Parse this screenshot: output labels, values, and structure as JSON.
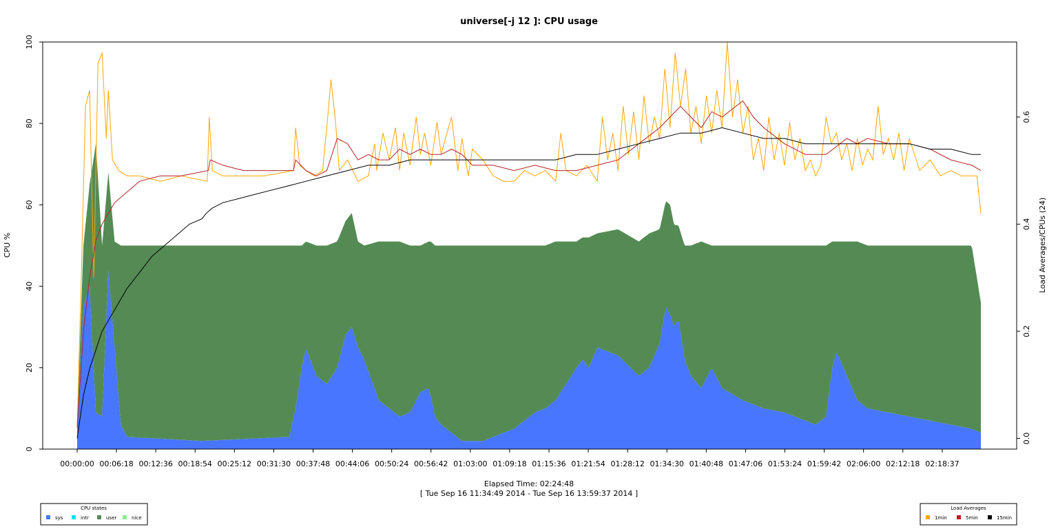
{
  "chart_data": {
    "type": "area",
    "title": "universe[-j 12  ]: CPU usage",
    "xlabel": "Elapsed Time: 02:24:48",
    "xlabel2": "[ Tue Sep 16 11:34:49 2014 - Tue Sep 16 13:59:37 2014 ]",
    "ylabel": "CPU %",
    "y2label": "Load Averages/CPUs (24)",
    "ylim": [
      0,
      100
    ],
    "y2lim": [
      -0.02,
      0.74
    ],
    "xlim_seconds": [
      0,
      8688
    ],
    "y_ticks": [
      "0",
      "20",
      "40",
      "60",
      "80",
      "100"
    ],
    "y2_ticks": [
      "0.0",
      "0.2",
      "0.4",
      "0.6"
    ],
    "x_ticks": [
      "00:00:00",
      "00:06:18",
      "00:12:36",
      "00:18:54",
      "00:25:12",
      "00:31:30",
      "00:37:48",
      "00:44:06",
      "00:50:24",
      "00:56:42",
      "01:03:00",
      "01:09:18",
      "01:15:36",
      "01:21:54",
      "01:28:12",
      "01:34:30",
      "01:40:48",
      "01:47:06",
      "01:53:24",
      "01:59:42",
      "02:06:00",
      "02:12:18",
      "02:18:37"
    ],
    "x_tick_seconds": [
      0,
      378,
      756,
      1134,
      1512,
      1890,
      2268,
      2646,
      3024,
      3402,
      3780,
      4158,
      4536,
      4914,
      5292,
      5670,
      6048,
      6426,
      6804,
      7182,
      7560,
      7938,
      8317
    ],
    "stacked_series": [
      {
        "name": "sys",
        "color": "#4876ff",
        "x": [
          0,
          60,
          120,
          180,
          240,
          300,
          360,
          420,
          480,
          1200,
          2040,
          2100,
          2160,
          2200,
          2300,
          2400,
          2500,
          2580,
          2640,
          2700,
          2760,
          2900,
          3000,
          3100,
          3200,
          3300,
          3380,
          3400,
          3440,
          3500,
          3600,
          3700,
          3800,
          3900,
          4000,
          4200,
          4300,
          4400,
          4500,
          4600,
          4800,
          4860,
          4920,
          5000,
          5200,
          5400,
          5500,
          5600,
          5660,
          5700,
          5740,
          5780,
          5840,
          5900,
          6000,
          6100,
          6200,
          6400,
          6600,
          6800,
          7000,
          7100,
          7200,
          7260,
          7300,
          7400,
          7500,
          7600,
          7800,
          8000,
          8200,
          8400,
          8600,
          8688
        ],
        "values": [
          3,
          35,
          40,
          9,
          8,
          44,
          25,
          6,
          3,
          2,
          3,
          10,
          20,
          25,
          18,
          16,
          20,
          28,
          30,
          25,
          22,
          12,
          10,
          8,
          9,
          14,
          15,
          13,
          8,
          6,
          4,
          2,
          2,
          2,
          3,
          5,
          7,
          9,
          10,
          12,
          20,
          22,
          20,
          25,
          23,
          18,
          20,
          26,
          35,
          33,
          30,
          32,
          22,
          18,
          15,
          20,
          15,
          12,
          10,
          9,
          7,
          6,
          8,
          20,
          24,
          18,
          12,
          10,
          9,
          8,
          7,
          6,
          5,
          4
        ]
      },
      {
        "name": "intr",
        "color": "#00e5ee",
        "x": [
          0,
          8688
        ],
        "values": [
          0,
          0
        ]
      },
      {
        "name": "user",
        "color": "#548b54",
        "x": [
          0,
          60,
          120,
          180,
          240,
          300,
          360,
          420,
          480,
          1200,
          2040,
          2100,
          2160,
          2200,
          2300,
          2400,
          2500,
          2580,
          2640,
          2700,
          2760,
          2900,
          3000,
          3100,
          3200,
          3300,
          3380,
          3400,
          3440,
          3500,
          3600,
          3700,
          3800,
          3900,
          4000,
          4200,
          4300,
          4400,
          4500,
          4600,
          4800,
          4860,
          4920,
          5000,
          5200,
          5400,
          5500,
          5600,
          5660,
          5700,
          5740,
          5780,
          5840,
          5900,
          6000,
          6100,
          6200,
          6400,
          6600,
          6800,
          7000,
          7100,
          7200,
          7260,
          7300,
          7400,
          7500,
          7600,
          7800,
          8000,
          8200,
          8400,
          8600,
          8688
        ],
        "values": [
          2,
          15,
          25,
          66,
          42,
          24,
          26,
          44,
          47,
          48,
          47,
          40,
          30,
          26,
          32,
          34,
          31,
          28,
          28,
          26,
          28,
          39,
          41,
          43,
          41,
          36,
          36,
          38,
          42,
          44,
          46,
          48,
          48,
          48,
          47,
          45,
          43,
          41,
          40,
          39,
          31,
          30,
          32,
          28,
          31,
          33,
          33,
          28,
          26,
          27,
          25,
          23,
          28,
          32,
          36,
          30,
          35,
          38,
          40,
          41,
          43,
          44,
          42,
          31,
          27,
          33,
          39,
          40,
          41,
          42,
          43,
          44,
          45,
          32
        ]
      },
      {
        "name": "nice",
        "color": "#90ee90",
        "x": [
          0,
          8688
        ],
        "values": [
          0,
          0
        ]
      }
    ],
    "line_series": [
      {
        "name": "1min",
        "color": "#ffa500",
        "x": [
          0,
          40,
          80,
          120,
          160,
          200,
          240,
          280,
          300,
          340,
          400,
          480,
          600,
          800,
          1000,
          1250,
          1270,
          1300,
          1400,
          1600,
          1800,
          2080,
          2100,
          2140,
          2200,
          2280,
          2360,
          2400,
          2440,
          2480,
          2520,
          2600,
          2700,
          2800,
          2860,
          2880,
          2940,
          3000,
          3060,
          3100,
          3140,
          3200,
          3260,
          3300,
          3340,
          3400,
          3460,
          3500,
          3540,
          3600,
          3660,
          3700,
          3760,
          3800,
          3900,
          4000,
          4100,
          4200,
          4300,
          4400,
          4500,
          4600,
          4650,
          4700,
          4800,
          4900,
          5000,
          5050,
          5100,
          5150,
          5200,
          5250,
          5300,
          5350,
          5400,
          5450,
          5500,
          5550,
          5600,
          5650,
          5700,
          5750,
          5800,
          5850,
          5900,
          5950,
          6000,
          6050,
          6100,
          6150,
          6200,
          6250,
          6300,
          6350,
          6400,
          6450,
          6500,
          6550,
          6600,
          6650,
          6700,
          6750,
          6800,
          6850,
          6900,
          6950,
          7000,
          7050,
          7100,
          7150,
          7200,
          7250,
          7300,
          7350,
          7400,
          7450,
          7500,
          7550,
          7600,
          7650,
          7700,
          7750,
          7800,
          7850,
          7900,
          7950,
          8000,
          8100,
          8200,
          8300,
          8400,
          8500,
          8650,
          8688
        ],
        "values": [
          0.02,
          0.3,
          0.62,
          0.65,
          0.3,
          0.7,
          0.72,
          0.56,
          0.65,
          0.52,
          0.5,
          0.49,
          0.49,
          0.48,
          0.49,
          0.48,
          0.6,
          0.5,
          0.49,
          0.49,
          0.49,
          0.5,
          0.58,
          0.51,
          0.5,
          0.49,
          0.5,
          0.58,
          0.67,
          0.6,
          0.5,
          0.52,
          0.48,
          0.49,
          0.55,
          0.5,
          0.57,
          0.52,
          0.58,
          0.5,
          0.57,
          0.51,
          0.6,
          0.53,
          0.57,
          0.51,
          0.59,
          0.53,
          0.56,
          0.6,
          0.5,
          0.56,
          0.49,
          0.54,
          0.52,
          0.49,
          0.48,
          0.48,
          0.5,
          0.49,
          0.5,
          0.48,
          0.57,
          0.5,
          0.49,
          0.51,
          0.48,
          0.6,
          0.52,
          0.57,
          0.5,
          0.62,
          0.53,
          0.61,
          0.52,
          0.64,
          0.55,
          0.6,
          0.56,
          0.69,
          0.58,
          0.72,
          0.62,
          0.69,
          0.57,
          0.62,
          0.55,
          0.64,
          0.57,
          0.65,
          0.58,
          0.74,
          0.6,
          0.67,
          0.57,
          0.62,
          0.52,
          0.56,
          0.5,
          0.6,
          0.52,
          0.57,
          0.51,
          0.59,
          0.52,
          0.56,
          0.5,
          0.52,
          0.49,
          0.51,
          0.6,
          0.55,
          0.57,
          0.52,
          0.55,
          0.5,
          0.56,
          0.51,
          0.54,
          0.52,
          0.62,
          0.53,
          0.56,
          0.52,
          0.57,
          0.5,
          0.56,
          0.5,
          0.52,
          0.49,
          0.5,
          0.49,
          0.49,
          0.42
        ]
      },
      {
        "name": "5min",
        "color": "#b22222",
        "x": [
          0,
          60,
          120,
          180,
          240,
          300,
          360,
          480,
          600,
          800,
          1000,
          1260,
          1280,
          1400,
          1600,
          1800,
          2000,
          2080,
          2100,
          2200,
          2300,
          2400,
          2500,
          2600,
          2700,
          2800,
          2900,
          3000,
          3100,
          3200,
          3300,
          3400,
          3500,
          3600,
          3700,
          3800,
          3900,
          4000,
          4200,
          4400,
          4600,
          4800,
          5000,
          5200,
          5400,
          5600,
          5700,
          5800,
          5900,
          6000,
          6100,
          6200,
          6400,
          6500,
          6600,
          6800,
          7000,
          7200,
          7400,
          7500,
          7600,
          7800,
          8000,
          8200,
          8400,
          8600,
          8688
        ],
        "values": [
          0.02,
          0.2,
          0.3,
          0.37,
          0.4,
          0.42,
          0.44,
          0.46,
          0.48,
          0.49,
          0.49,
          0.5,
          0.52,
          0.51,
          0.5,
          0.5,
          0.5,
          0.5,
          0.52,
          0.5,
          0.49,
          0.5,
          0.56,
          0.55,
          0.52,
          0.53,
          0.52,
          0.52,
          0.54,
          0.53,
          0.54,
          0.53,
          0.53,
          0.54,
          0.53,
          0.51,
          0.51,
          0.51,
          0.5,
          0.51,
          0.5,
          0.5,
          0.51,
          0.52,
          0.55,
          0.58,
          0.6,
          0.62,
          0.6,
          0.58,
          0.61,
          0.6,
          0.63,
          0.6,
          0.58,
          0.55,
          0.53,
          0.53,
          0.56,
          0.55,
          0.56,
          0.55,
          0.55,
          0.54,
          0.52,
          0.51,
          0.5
        ]
      },
      {
        "name": "15min",
        "color": "#000000",
        "x": [
          0,
          60,
          120,
          240,
          360,
          480,
          600,
          720,
          840,
          960,
          1080,
          1200,
          1240,
          1300,
          1400,
          1600,
          1800,
          2000,
          2200,
          2400,
          2600,
          2800,
          3000,
          3200,
          3400,
          3600,
          3800,
          4000,
          4200,
          4400,
          4600,
          4800,
          5000,
          5200,
          5400,
          5600,
          5800,
          6000,
          6200,
          6400,
          6600,
          6800,
          7000,
          7200,
          7400,
          7600,
          7800,
          8000,
          8200,
          8400,
          8600,
          8688
        ],
        "values": [
          0.0,
          0.08,
          0.13,
          0.2,
          0.24,
          0.28,
          0.31,
          0.34,
          0.36,
          0.38,
          0.4,
          0.41,
          0.42,
          0.43,
          0.44,
          0.45,
          0.46,
          0.47,
          0.48,
          0.49,
          0.5,
          0.51,
          0.51,
          0.52,
          0.52,
          0.52,
          0.52,
          0.52,
          0.52,
          0.52,
          0.52,
          0.53,
          0.53,
          0.54,
          0.55,
          0.56,
          0.57,
          0.57,
          0.58,
          0.57,
          0.56,
          0.56,
          0.55,
          0.55,
          0.55,
          0.55,
          0.55,
          0.55,
          0.54,
          0.54,
          0.53,
          0.53
        ]
      }
    ],
    "legend_cpu": {
      "title": "CPU states",
      "placement": "bottom-left",
      "items": [
        {
          "label": "sys",
          "color": "#4876ff"
        },
        {
          "label": "intr",
          "color": "#00e5ee"
        },
        {
          "label": "user",
          "color": "#548b54"
        },
        {
          "label": "nice",
          "color": "#90ee90"
        }
      ]
    },
    "legend_load": {
      "title": "Load Averages",
      "placement": "bottom-right",
      "items": [
        {
          "label": "1min",
          "color": "#ffa500"
        },
        {
          "label": "5min",
          "color": "#b22222"
        },
        {
          "label": "15min",
          "color": "#000000"
        }
      ]
    }
  }
}
